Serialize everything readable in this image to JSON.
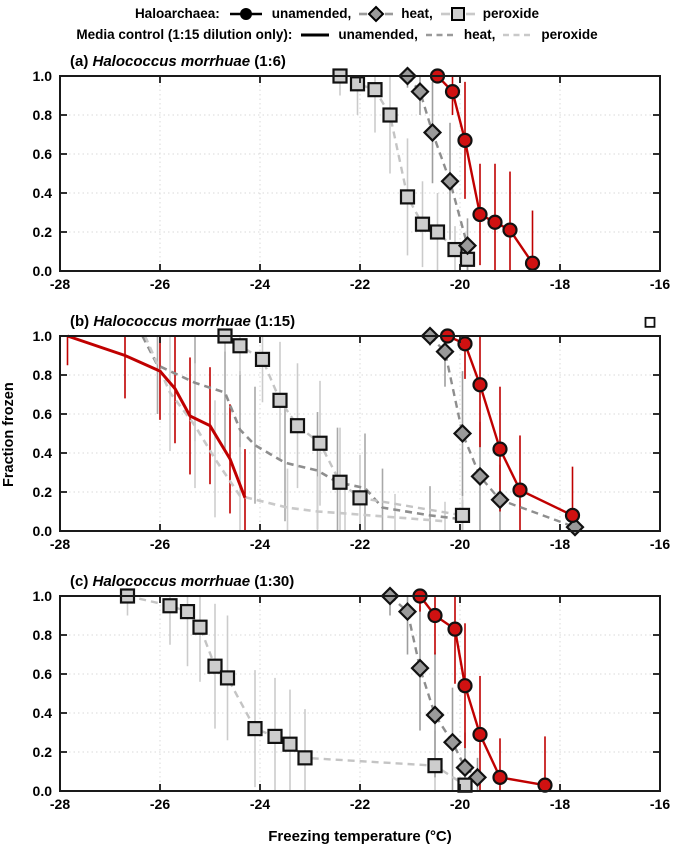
{
  "legend": {
    "row1": {
      "title": "Haloarchaea:",
      "unamended": "unamended,",
      "heat": "heat,",
      "peroxide": "peroxide"
    },
    "row2": {
      "title": "Media control (1:15 dilution only):",
      "unamended": "unamended,",
      "heat": "heat,",
      "peroxide": "peroxide"
    }
  },
  "axis": {
    "xlabel": "Freezing temperature (°C)",
    "ylabel": "Fraction frozen",
    "xlim": [
      -28,
      -16
    ],
    "ylim": [
      0,
      1
    ],
    "xticks": [
      -28,
      -26,
      -24,
      -22,
      -20,
      -18,
      -16
    ],
    "yticks": [
      0,
      0.2,
      0.4,
      0.6,
      0.8,
      1.0
    ],
    "grid": "dotted"
  },
  "colors": {
    "unamended_line": "#c00000",
    "unamended_fill": "#d01111",
    "heat_line": "#8e8e8e",
    "heat_fill": "#9a9a9a",
    "peroxide_line": "#c4c4c4",
    "peroxide_fill": "#cdcdcd",
    "frame": "#1a1a1a",
    "grid": "#d9d9d9"
  },
  "chart_data": [
    {
      "type": "line",
      "id": "a",
      "title_prefix": "(a) ",
      "title_species": "Halococcus morrhuae",
      "title_suffix": " (1:6)",
      "series": [
        {
          "name": "peroxide",
          "marker": "square",
          "line": "#c4c4c4",
          "fill": "#cdcdcd",
          "err": "#cbcbcb",
          "dash": "7,5",
          "points": [
            [
              -22.4,
              1.0,
              0.1
            ],
            [
              -22.05,
              0.96,
              0.16
            ],
            [
              -21.7,
              0.93,
              0.22
            ],
            [
              -21.4,
              0.8,
              0.3
            ],
            [
              -21.05,
              0.38,
              0.3
            ],
            [
              -20.75,
              0.24,
              0.22
            ],
            [
              -20.45,
              0.2,
              0.2
            ],
            [
              -20.1,
              0.11,
              0.12
            ],
            [
              -19.85,
              0.06,
              0.07
            ]
          ]
        },
        {
          "name": "heat",
          "marker": "diamond",
          "line": "#8e8e8e",
          "fill": "#9a9a9a",
          "err": "#9e9e9e",
          "dash": "7,5",
          "points": [
            [
              -21.05,
              1.0,
              0.06
            ],
            [
              -20.8,
              0.92,
              0.12
            ],
            [
              -20.55,
              0.71,
              0.26
            ],
            [
              -20.2,
              0.46,
              0.3
            ],
            [
              -19.85,
              0.13,
              0.14
            ]
          ]
        },
        {
          "name": "unamended",
          "marker": "circle",
          "line": "#c00000",
          "fill": "#d01111",
          "err": "#c00000",
          "dash": null,
          "points": [
            [
              -20.45,
              1.0,
              0
            ],
            [
              -20.15,
              0.92,
              0.12
            ],
            [
              -19.9,
              0.67,
              0.3
            ],
            [
              -19.6,
              0.29,
              0.26
            ],
            [
              -19.3,
              0.25,
              0.3
            ],
            [
              -19.0,
              0.21,
              0.3
            ],
            [
              -18.55,
              0.04,
              0.27
            ]
          ]
        }
      ]
    },
    {
      "type": "line",
      "id": "b",
      "title_prefix": "(b) ",
      "title_species": "Halococcus morrhuae",
      "title_suffix": " (1:15)",
      "stray_marker": {
        "x": -16.2,
        "y": 1.07
      },
      "series": [
        {
          "name": "media-heat",
          "marker": null,
          "line": "#8e8e8e",
          "err": "#a8a8a8",
          "dash": "7,5",
          "lw": 2.6,
          "points": [
            [
              -26.35,
              1.0,
              0
            ],
            [
              -26.05,
              0.85,
              0.25
            ],
            [
              -25.3,
              0.76,
              0.3
            ],
            [
              -24.7,
              0.71,
              0.3
            ],
            [
              -24.4,
              0.52,
              0.3
            ],
            [
              -24.1,
              0.44,
              0.3
            ],
            [
              -23.5,
              0.35,
              0.3
            ],
            [
              -22.85,
              0.31,
              0.3
            ],
            [
              -22.45,
              0.25,
              0.28
            ],
            [
              -21.9,
              0.22,
              0.28
            ],
            [
              -21.55,
              0.12,
              0.2
            ],
            [
              -20.6,
              0.08,
              0.15
            ],
            [
              -19.95,
              0.06,
              0.1
            ]
          ]
        },
        {
          "name": "media-peroxide",
          "marker": null,
          "line": "#c9c9c9",
          "err": "#cfcfcf",
          "dash": "7,5",
          "lw": 2.6,
          "points": [
            [
              -26.3,
              1.0,
              0
            ],
            [
              -25.8,
              0.71,
              0.3
            ],
            [
              -25.3,
              0.54,
              0.32
            ],
            [
              -24.9,
              0.37,
              0.3
            ],
            [
              -24.4,
              0.18,
              0.25
            ],
            [
              -23.45,
              0.12,
              0.2
            ],
            [
              -22.85,
              0.1,
              0.18
            ],
            [
              -22.3,
              0.09,
              0.15
            ],
            [
              -21.3,
              0.07,
              0.12
            ],
            [
              -20.3,
              0.05,
              0.1
            ]
          ]
        },
        {
          "name": "media-unamended",
          "marker": null,
          "line": "#c00000",
          "err": "#c00000",
          "dash": null,
          "lw": 3,
          "points": [
            [
              -27.85,
              1.0,
              0.15
            ],
            [
              -26.7,
              0.9,
              0.22
            ],
            [
              -26.0,
              0.82,
              0.25
            ],
            [
              -25.7,
              0.73,
              0.28
            ],
            [
              -25.4,
              0.59,
              0.3
            ],
            [
              -25.0,
              0.54,
              0.3
            ],
            [
              -24.6,
              0.37,
              0.28
            ],
            [
              -24.3,
              0.17,
              0.25
            ]
          ]
        },
        {
          "name": "peroxide",
          "marker": "square",
          "line": "#c4c4c4",
          "fill": "#cdcdcd",
          "err": "#cbcbcb",
          "dash": "7,5",
          "points": [
            [
              -24.7,
              1.0,
              0.08
            ],
            [
              -24.4,
              0.95,
              0.15
            ],
            [
              -23.95,
              0.88,
              0.22
            ],
            [
              -23.6,
              0.67,
              0.3
            ],
            [
              -23.25,
              0.54,
              0.32
            ],
            [
              -22.8,
              0.45,
              0.32
            ],
            [
              -22.4,
              0.25,
              0.28
            ],
            [
              -22.0,
              0.17,
              0.22
            ],
            [
              -19.95,
              0.08,
              0.12
            ]
          ]
        },
        {
          "name": "heat",
          "marker": "diamond",
          "line": "#8e8e8e",
          "fill": "#9a9a9a",
          "err": "#9e9e9e",
          "dash": "7,5",
          "points": [
            [
              -20.6,
              1.0,
              0.05
            ],
            [
              -20.3,
              0.92,
              0.18
            ],
            [
              -19.95,
              0.5,
              0.32
            ],
            [
              -19.6,
              0.28,
              0.28
            ],
            [
              -19.2,
              0.16,
              0.18
            ],
            [
              -17.7,
              0.02,
              0
            ]
          ]
        },
        {
          "name": "unamended",
          "marker": "circle",
          "line": "#c00000",
          "fill": "#d01111",
          "err": "#c00000",
          "dash": null,
          "points": [
            [
              -20.25,
              1.0,
              0
            ],
            [
              -19.9,
              0.96,
              0.18
            ],
            [
              -19.6,
              0.75,
              0.32
            ],
            [
              -19.2,
              0.42,
              0.32
            ],
            [
              -18.8,
              0.21,
              0.28
            ],
            [
              -17.75,
              0.08,
              0.25
            ]
          ]
        }
      ]
    },
    {
      "type": "line",
      "id": "c",
      "title_prefix": "(c) ",
      "title_species": "Halococcus morrhuae",
      "title_suffix": " (1:30)",
      "series": [
        {
          "name": "peroxide",
          "marker": "square",
          "line": "#c4c4c4",
          "fill": "#cdcdcd",
          "err": "#cbcbcb",
          "dash": "7,5",
          "points": [
            [
              -26.65,
              1.0,
              0.1
            ],
            [
              -25.8,
              0.95,
              0.2
            ],
            [
              -25.45,
              0.92,
              0.28
            ],
            [
              -25.2,
              0.84,
              0.28
            ],
            [
              -24.9,
              0.64,
              0.32
            ],
            [
              -24.65,
              0.58,
              0.32
            ],
            [
              -24.1,
              0.32,
              0.3
            ],
            [
              -23.7,
              0.28,
              0.3
            ],
            [
              -23.4,
              0.24,
              0.28
            ],
            [
              -23.1,
              0.17,
              0.25
            ],
            [
              -20.5,
              0.13,
              0.18
            ],
            [
              -19.9,
              0.03,
              0.05
            ]
          ]
        },
        {
          "name": "heat",
          "marker": "diamond",
          "line": "#8e8e8e",
          "fill": "#9a9a9a",
          "err": "#9e9e9e",
          "dash": "7,5",
          "points": [
            [
              -21.4,
              1.0,
              0.1
            ],
            [
              -21.05,
              0.92,
              0.22
            ],
            [
              -20.8,
              0.63,
              0.32
            ],
            [
              -20.5,
              0.39,
              0.32
            ],
            [
              -20.15,
              0.25,
              0.28
            ],
            [
              -19.9,
              0.12,
              0.18
            ],
            [
              -19.65,
              0.07,
              0.1
            ]
          ]
        },
        {
          "name": "unamended",
          "marker": "circle",
          "line": "#c00000",
          "fill": "#d01111",
          "err": "#c00000",
          "dash": null,
          "points": [
            [
              -20.8,
              1.0,
              0.08
            ],
            [
              -20.5,
              0.9,
              0.2
            ],
            [
              -20.1,
              0.83,
              0.28
            ],
            [
              -19.9,
              0.54,
              0.32
            ],
            [
              -19.6,
              0.29,
              0.3
            ],
            [
              -19.2,
              0.07,
              0.2
            ],
            [
              -18.3,
              0.03,
              0.25
            ]
          ]
        }
      ]
    }
  ]
}
